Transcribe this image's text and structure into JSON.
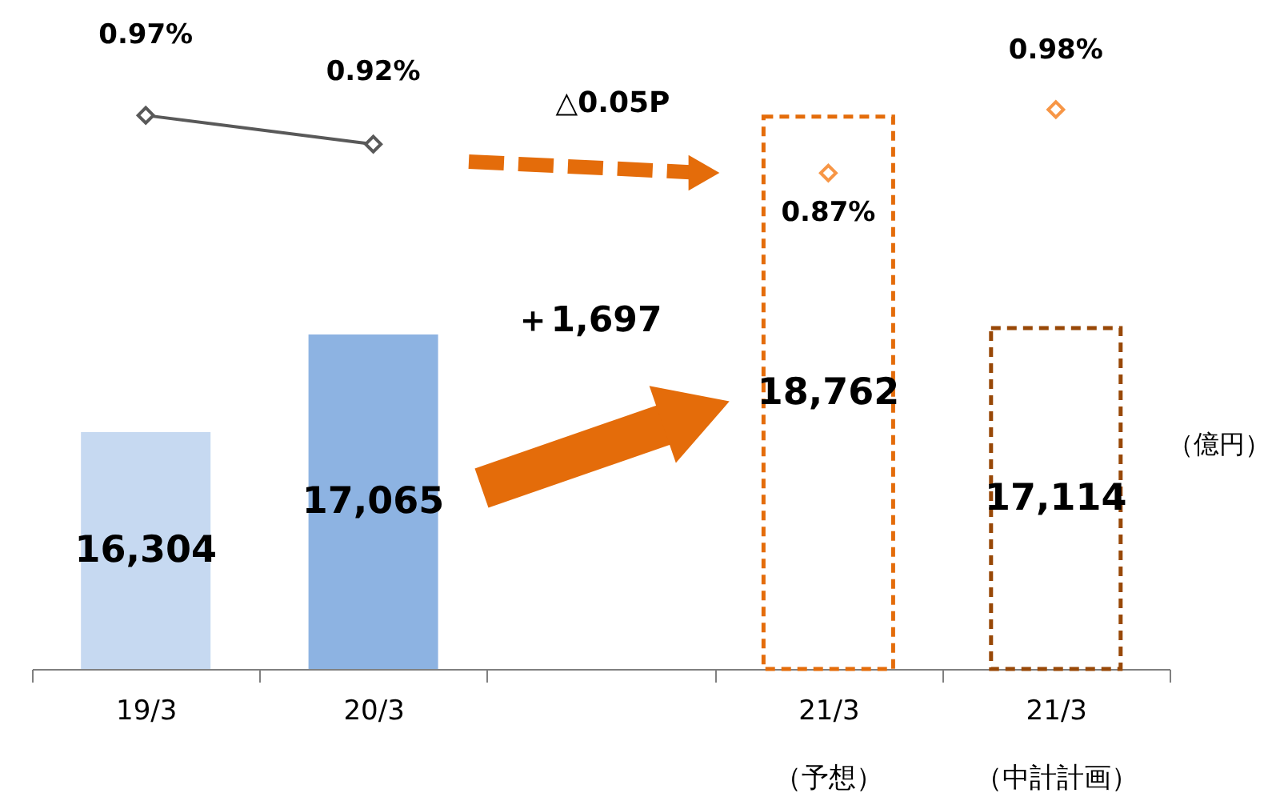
{
  "chart_data": {
    "type": "bar",
    "categories": [
      "19/3",
      "20/3",
      null,
      "21/3\n（予想）",
      "21/3\n（中計計画）"
    ],
    "series": [
      {
        "values": [
          16304,
          17065,
          null,
          null,
          null
        ],
        "colors": [
          "#c6d9f1",
          "#8db3e2",
          null,
          null,
          null
        ],
        "value_labels": [
          "16,304",
          "17,065",
          null,
          null,
          null
        ]
      },
      {
        "line_style": "dashed",
        "values": [
          null,
          null,
          null,
          18762,
          17114
        ],
        "colors": [
          null,
          null,
          null,
          "#e46c0a",
          "#984807"
        ],
        "value_labels": [
          null,
          null,
          null,
          "18,762",
          "17,114"
        ]
      },
      {
        "type": "line",
        "axis": "y2",
        "color": "#595959",
        "marker": "diamond",
        "values": [
          0.97,
          0.92,
          null,
          null,
          null
        ],
        "value_labels": [
          "0.97%",
          "0.92%",
          null,
          null,
          null
        ]
      },
      {
        "type": "scatter",
        "axis": "y2",
        "color": "#f79646",
        "marker": "diamond",
        "values": [
          null,
          null,
          null,
          0.87,
          0.98
        ],
        "value_labels": [
          null,
          null,
          null,
          "0.87%",
          "0.98%"
        ]
      }
    ],
    "ylim": [
      14459,
      19670
    ],
    "y2lim": [
      0.01,
      1.17
    ],
    "tick_labels": "x",
    "grid": false,
    "annotations": [
      "△0.05P",
      "＋1,697",
      "（億円）"
    ]
  }
}
